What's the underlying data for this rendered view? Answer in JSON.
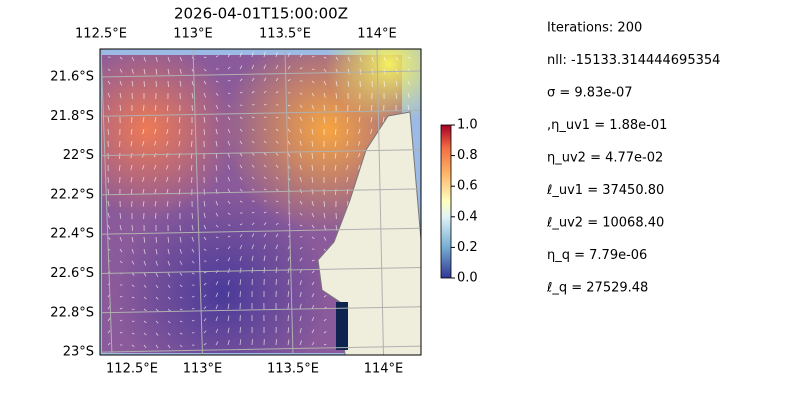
{
  "title": "2026-04-01T15:00:00Z",
  "lon_ticks": [
    {
      "value": 112.5,
      "label": "112.5°E"
    },
    {
      "value": 113,
      "label": "113°E"
    },
    {
      "value": 113.5,
      "label": "113.5°E"
    },
    {
      "value": 114,
      "label": "114°E"
    }
  ],
  "lat_ticks": [
    {
      "value": -21.6,
      "label": "21.6°S"
    },
    {
      "value": -21.8,
      "label": "21.8°S"
    },
    {
      "value": -22,
      "label": "22°S"
    },
    {
      "value": -22.2,
      "label": "22.2°S"
    },
    {
      "value": -22.4,
      "label": "22.4°S"
    },
    {
      "value": -22.6,
      "label": "22.6°S"
    },
    {
      "value": -22.8,
      "label": "22.8°S"
    },
    {
      "value": -23,
      "label": "23°S"
    }
  ],
  "colorbar": {
    "lim": [
      0,
      1
    ],
    "ticks": [
      {
        "value": 0,
        "label": "0.0"
      },
      {
        "value": 0.2,
        "label": "0.2"
      },
      {
        "value": 0.4,
        "label": "0.4"
      },
      {
        "value": 0.6,
        "label": "0.6"
      },
      {
        "value": 0.8,
        "label": "0.8"
      },
      {
        "value": 1,
        "label": "1.0"
      }
    ]
  },
  "stats": [
    "Iterations: 200",
    "nll: -15133.314444695354",
    "σ = 9.83e-07",
    ",η_uv1 = 1.88e-01",
    "η_uv2 = 4.77e-02",
    "ℓ_uv1 = 37450.80",
    "ℓ_uv2 = 10068.40",
    "η_q = 7.79e-06",
    "ℓ_q = 27529.48"
  ]
}
